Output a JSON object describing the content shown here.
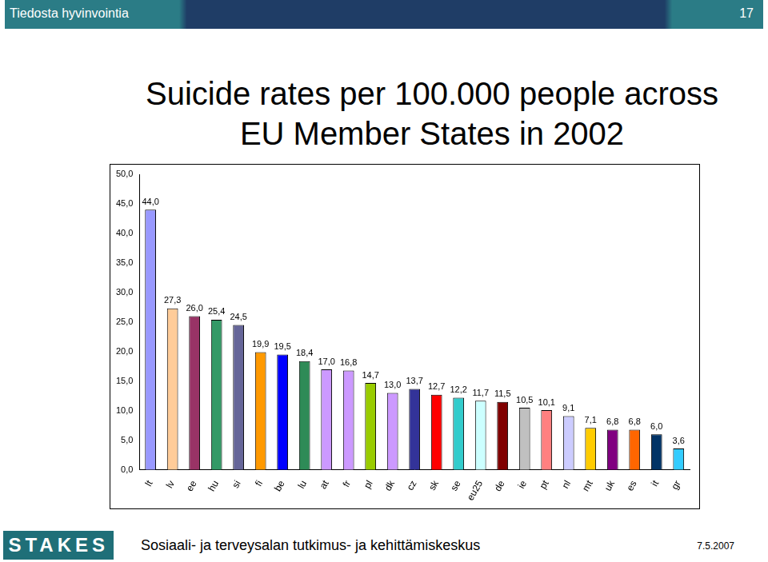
{
  "header": {
    "title": "Tiedosta hyvinvointia",
    "page": 17
  },
  "chart_data": {
    "type": "bar",
    "title": "Suicide rates per 100.000 people across EU Member States in 2002",
    "categories": [
      "lt",
      "lv",
      "ee",
      "hu",
      "si",
      "fi",
      "be",
      "lu",
      "at",
      "fr",
      "pl",
      "dk",
      "cz",
      "sk",
      "se",
      "eu25",
      "de",
      "ie",
      "pt",
      "nl",
      "mt",
      "uk",
      "es",
      "it",
      "gr"
    ],
    "values": [
      44.0,
      27.3,
      26.0,
      25.4,
      24.5,
      19.9,
      19.5,
      18.4,
      17.0,
      16.8,
      14.7,
      13.0,
      13.7,
      12.7,
      12.2,
      11.7,
      11.5,
      10.5,
      10.1,
      9.1,
      7.1,
      6.8,
      6.8,
      6.0,
      3.6
    ],
    "value_labels": [
      "44,0",
      "27,3",
      "26,0",
      "25,4",
      "24,5",
      "19,9",
      "19,5",
      "18,4",
      "17,0",
      "16,8",
      "14,7",
      "13,0",
      "13,7",
      "12,7",
      "12,2",
      "11,7",
      "11,5",
      "10,5",
      "10,1",
      "9,1",
      "7,1",
      "6,8",
      "6,8",
      "6,0",
      "3,6"
    ],
    "colors": [
      "#9999ff",
      "#ffcc99",
      "#993366",
      "#339966",
      "#666699",
      "#ff9900",
      "#0000ff",
      "#2e8b57",
      "#cc99ff",
      "#cc99ff",
      "#99cc00",
      "#cc99ff",
      "#333399",
      "#ff0000",
      "#33cccc",
      "#ccffff",
      "#800000",
      "#c0c0c0",
      "#ff8080",
      "#ccccff",
      "#ffcc00",
      "#800080",
      "#ff6600",
      "#003366",
      "#33ccff"
    ],
    "ylim": [
      0,
      50
    ],
    "yticks": [
      {
        "value": 0,
        "label": "0,0"
      },
      {
        "value": 5,
        "label": "5,0"
      },
      {
        "value": 10,
        "label": "10,0"
      },
      {
        "value": 15,
        "label": "15,0"
      },
      {
        "value": 20,
        "label": "20,0"
      },
      {
        "value": 25,
        "label": "25,0"
      },
      {
        "value": 30,
        "label": "30,0"
      },
      {
        "value": 35,
        "label": "35,0"
      },
      {
        "value": 40,
        "label": "40,0"
      },
      {
        "value": 45,
        "label": "45,0"
      },
      {
        "value": 50,
        "label": "50,0"
      }
    ],
    "grid": false,
    "data_labels": true
  },
  "footer": {
    "logo": "STAKES",
    "organization": "Sosiaali- ja terveysalan tutkimus- ja kehittämiskeskus",
    "date": "7.5.2007"
  }
}
